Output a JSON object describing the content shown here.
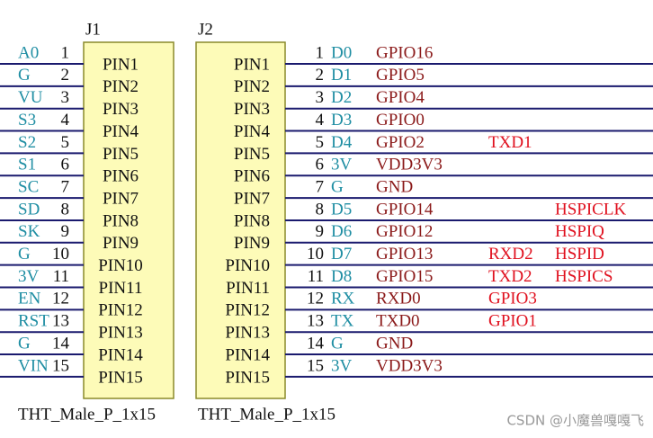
{
  "j1": {
    "designator": "J1",
    "footprint": "THT_Male_P_1x15",
    "pins": [
      {
        "number": 1,
        "net": "A0",
        "name": "PIN1"
      },
      {
        "number": 2,
        "net": "G",
        "name": "PIN2"
      },
      {
        "number": 3,
        "net": "VU",
        "name": "PIN3"
      },
      {
        "number": 4,
        "net": "S3",
        "name": "PIN4"
      },
      {
        "number": 5,
        "net": "S2",
        "name": "PIN5"
      },
      {
        "number": 6,
        "net": "S1",
        "name": "PIN6"
      },
      {
        "number": 7,
        "net": "SC",
        "name": "PIN7"
      },
      {
        "number": 8,
        "net": "SD",
        "name": "PIN8"
      },
      {
        "number": 9,
        "net": "SK",
        "name": "PIN9"
      },
      {
        "number": 10,
        "net": "G",
        "name": "PIN10"
      },
      {
        "number": 11,
        "net": "3V",
        "name": "PIN11"
      },
      {
        "number": 12,
        "net": "EN",
        "name": "PIN12"
      },
      {
        "number": 13,
        "net": "RST",
        "name": "PIN13"
      },
      {
        "number": 14,
        "net": "G",
        "name": "PIN14"
      },
      {
        "number": 15,
        "net": "VIN",
        "name": "PIN15"
      }
    ]
  },
  "j2": {
    "designator": "J2",
    "footprint": "THT_Male_P_1x15",
    "pins": [
      {
        "number": 1,
        "net": "D0",
        "name": "PIN1",
        "signal": "GPIO16"
      },
      {
        "number": 2,
        "net": "D1",
        "name": "PIN2",
        "signal": "GPIO5"
      },
      {
        "number": 3,
        "net": "D2",
        "name": "PIN3",
        "signal": "GPIO4"
      },
      {
        "number": 4,
        "net": "D3",
        "name": "PIN4",
        "signal": "GPIO0"
      },
      {
        "number": 5,
        "net": "D4",
        "name": "PIN5",
        "signal": "GPIO2",
        "alt1": "TXD1"
      },
      {
        "number": 6,
        "net": "3V",
        "name": "PIN6",
        "signal": "VDD3V3"
      },
      {
        "number": 7,
        "net": "G",
        "name": "PIN7",
        "signal": "GND"
      },
      {
        "number": 8,
        "net": "D5",
        "name": "PIN8",
        "signal": "GPIO14",
        "alt2": "HSPICLK"
      },
      {
        "number": 9,
        "net": "D6",
        "name": "PIN9",
        "signal": "GPIO12",
        "alt2": "HSPIQ"
      },
      {
        "number": 10,
        "net": "D7",
        "name": "PIN10",
        "signal": "GPIO13",
        "alt1": "RXD2",
        "alt2": "HSPID"
      },
      {
        "number": 11,
        "net": "D8",
        "name": "PIN11",
        "signal": "GPIO15",
        "alt1": "TXD2",
        "alt2": "HSPICS"
      },
      {
        "number": 12,
        "net": "RX",
        "name": "PIN12",
        "signal": "RXD0",
        "alt1": "GPIO3"
      },
      {
        "number": 13,
        "net": "TX",
        "name": "PIN13",
        "signal": "TXD0",
        "alt1": "GPIO1"
      },
      {
        "number": 14,
        "net": "G",
        "name": "PIN14",
        "signal": "GND"
      },
      {
        "number": 15,
        "net": "3V",
        "name": "PIN15",
        "signal": "VDD3V3"
      }
    ]
  },
  "watermark": "CSDN @小魔兽嘎嘎飞"
}
